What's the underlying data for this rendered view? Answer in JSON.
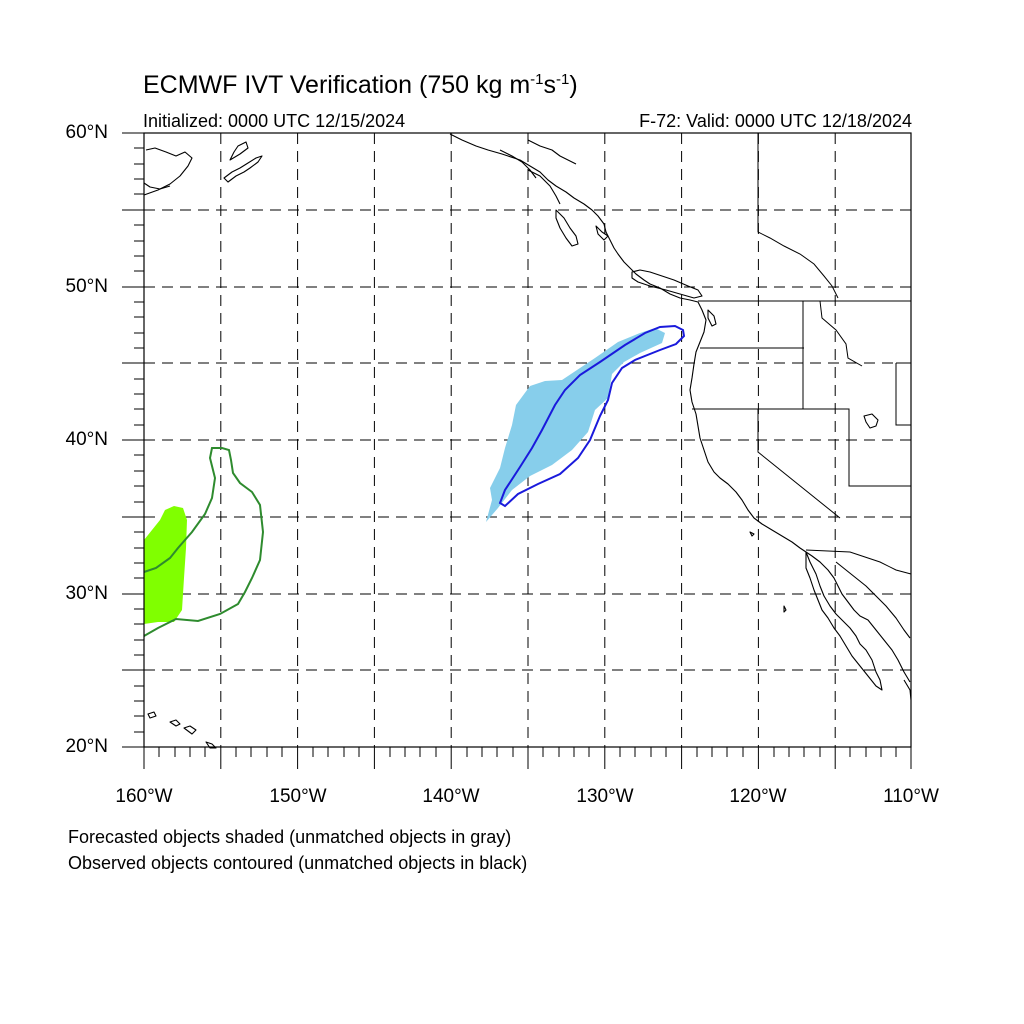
{
  "title": {
    "text": "ECMWF IVT Verification (750 kg m",
    "sup1": "-1",
    "mid": "s",
    "sup2": "-1",
    "end": ")"
  },
  "subtitle_left": "Initialized: 0000 UTC 12/15/2024",
  "subtitle_right": "F-72: Valid: 0000 UTC 12/18/2024",
  "lat_labels": [
    "60°N",
    "50°N",
    "40°N",
    "30°N",
    "20°N"
  ],
  "lon_labels": [
    "160°W",
    "150°W",
    "140°W",
    "130°W",
    "120°W",
    "110°W"
  ],
  "footer": [
    "Forecasted objects shaded (unmatched objects in gray)",
    "Observed objects contoured (unmatched objects in black)"
  ],
  "map": {
    "lon_range": [
      -160,
      -110
    ],
    "lat_range": [
      20,
      60
    ],
    "grid_interval_deg": 5,
    "grid_style": "dashed",
    "colors": {
      "forecast_object_1": "#87CEEB",
      "observed_object_1": "#1a1adc",
      "forecast_object_2": "#80ff00",
      "observed_object_2": "#2e8b2e",
      "coastline": "#000000"
    }
  }
}
